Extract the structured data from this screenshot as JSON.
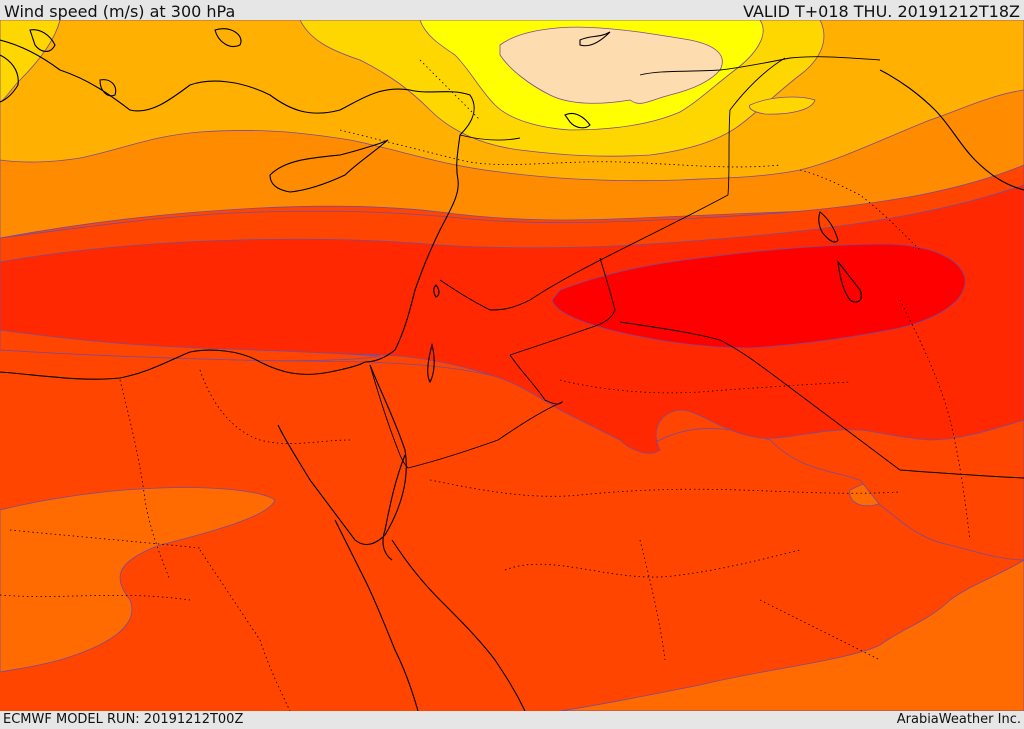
{
  "header": {
    "title": "Wind speed (m/s) at 300 hPa",
    "valid": "VALID T+018 THU. 20191212T18Z"
  },
  "footer": {
    "model_run": "ECMWF MODEL RUN: 20191212T00Z",
    "brand": "ArabiaWeather Inc."
  },
  "palette": {
    "c1": "#fddcb0",
    "c2": "#ffff00",
    "c3": "#ffd700",
    "c4": "#ffb000",
    "c5": "#ff8c00",
    "c6": "#ff6b00",
    "c7": "#ff4500",
    "c8": "#ff2800",
    "c9": "#ff0000",
    "contour": "#7a4a9a",
    "coast": "#000000"
  }
}
